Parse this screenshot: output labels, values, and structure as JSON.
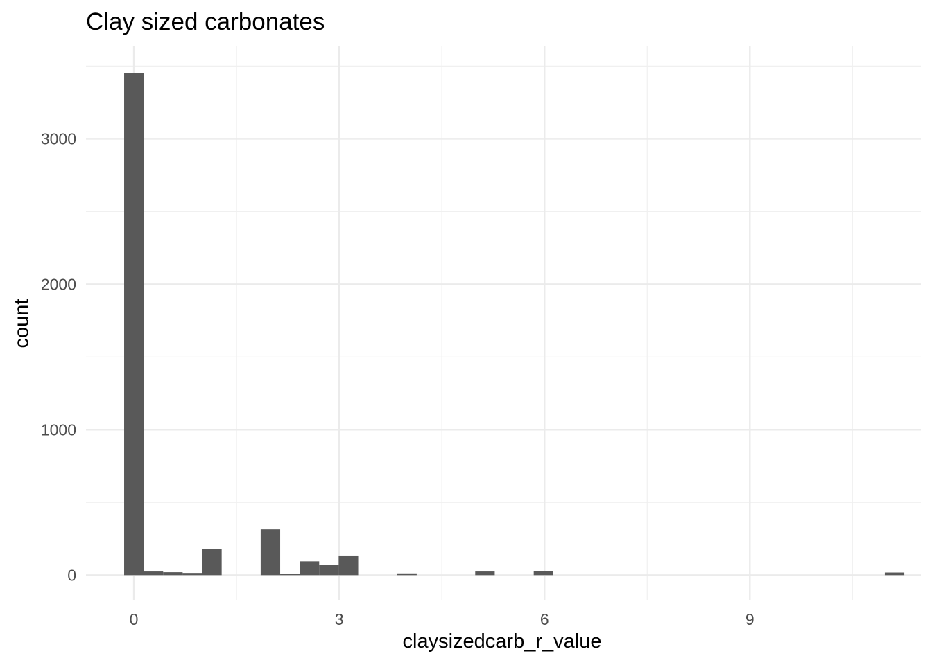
{
  "chart_data": {
    "type": "bar",
    "title": "Clay sized carbonates",
    "xlabel": "claysizedcarb_r_value",
    "ylabel": "count",
    "xlim": [
      -0.7,
      11.5
    ],
    "ylim": [
      -170,
      3640
    ],
    "x_ticks": [
      0,
      3,
      6,
      9
    ],
    "y_ticks": [
      0,
      1000,
      2000,
      3000
    ],
    "grid": true,
    "bin_width": 0.285,
    "bars": [
      {
        "x": 0.0,
        "count": 3450
      },
      {
        "x": 0.285,
        "count": 25
      },
      {
        "x": 0.57,
        "count": 20
      },
      {
        "x": 0.855,
        "count": 15
      },
      {
        "x": 1.14,
        "count": 180
      },
      {
        "x": 1.995,
        "count": 315
      },
      {
        "x": 2.28,
        "count": 8
      },
      {
        "x": 2.565,
        "count": 95
      },
      {
        "x": 2.85,
        "count": 70
      },
      {
        "x": 3.135,
        "count": 135
      },
      {
        "x": 3.99,
        "count": 12
      },
      {
        "x": 5.13,
        "count": 25
      },
      {
        "x": 5.985,
        "count": 28
      },
      {
        "x": 11.115,
        "count": 18
      }
    ]
  }
}
